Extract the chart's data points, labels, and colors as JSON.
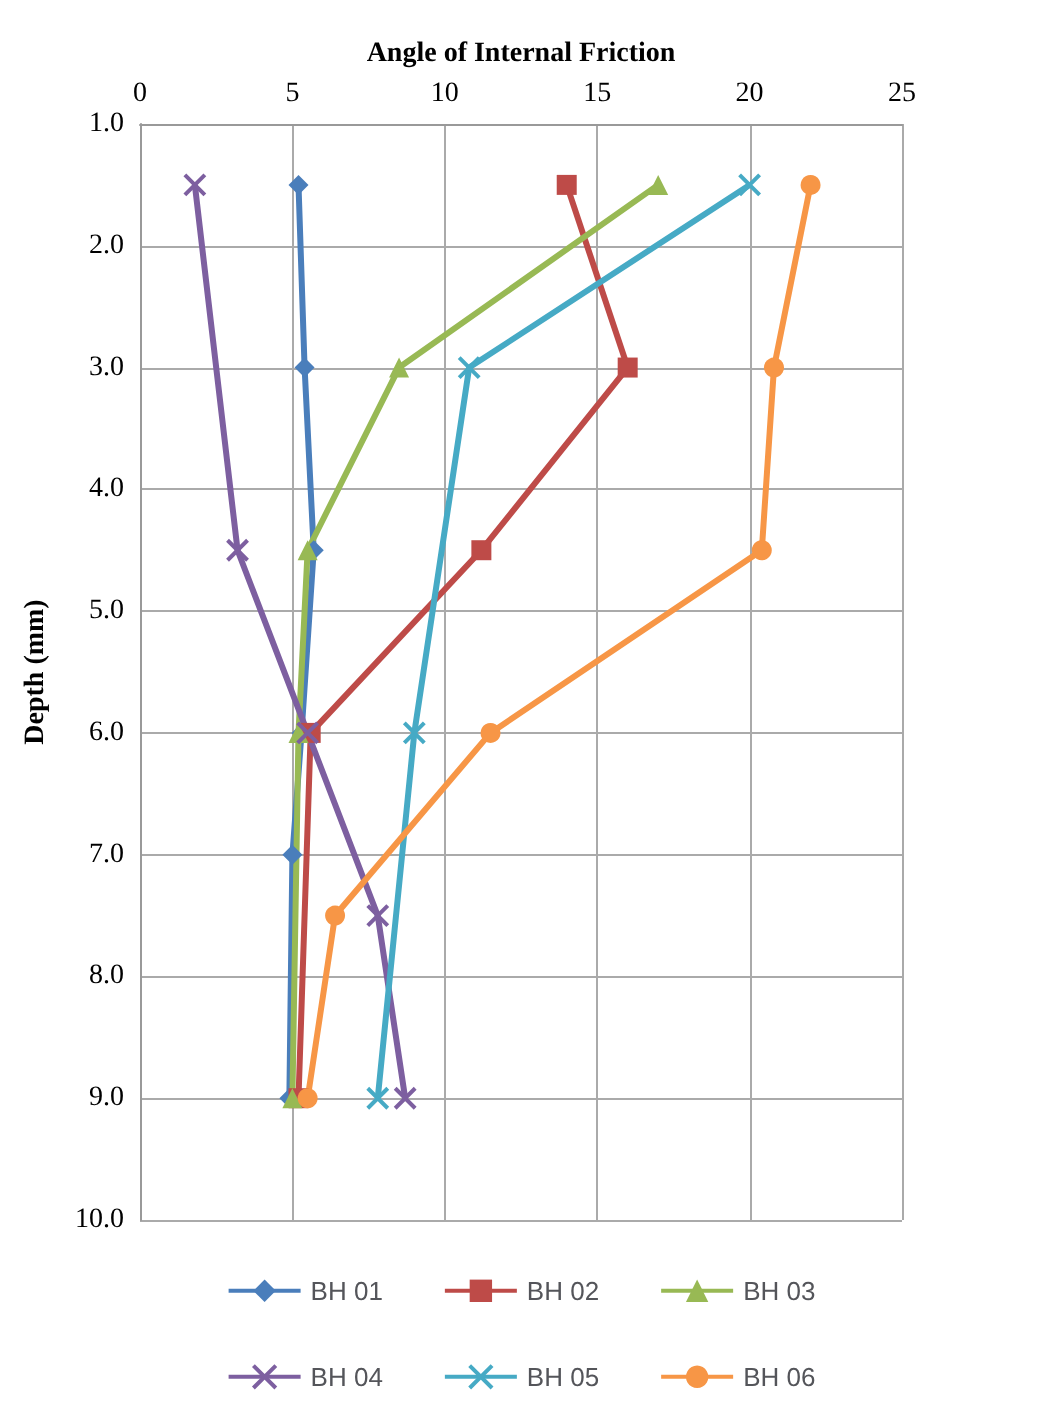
{
  "chart_data": {
    "type": "line",
    "xlabel": "Angle of Internal Friction",
    "ylabel": "Depth (mm)",
    "xlim": [
      0,
      25
    ],
    "xticks": [
      0,
      5,
      10,
      15,
      20,
      25
    ],
    "ylim": [
      10,
      1
    ],
    "yticks": [
      {
        "value": 1,
        "label": "1.0"
      },
      {
        "value": 2,
        "label": "2.0"
      },
      {
        "value": 3,
        "label": "3.0"
      },
      {
        "value": 4,
        "label": "4.0"
      },
      {
        "value": 5,
        "label": "5.0"
      },
      {
        "value": 6,
        "label": "6.0"
      },
      {
        "value": 7,
        "label": "7.0"
      },
      {
        "value": 8,
        "label": "8.0"
      },
      {
        "value": 9,
        "label": "9.0"
      },
      {
        "value": 10,
        "label": "10.0"
      }
    ],
    "grid": true,
    "legend": "bottom",
    "line_style": "solid",
    "series": [
      {
        "name": "BH 01",
        "color": "#4a7ebb",
        "marker": "diamond",
        "x": [
          5.2,
          5.4,
          5.7,
          5.3,
          5.0,
          4.9
        ],
        "values": [
          1.5,
          3.0,
          4.5,
          6.0,
          7.0,
          9.0
        ]
      },
      {
        "name": "BH 02",
        "color": "#be4b48",
        "marker": "square",
        "x": [
          14.0,
          16.0,
          11.2,
          5.6,
          5.2
        ],
        "values": [
          1.5,
          3.0,
          4.5,
          6.0,
          9.0
        ]
      },
      {
        "name": "BH 03",
        "color": "#98b954",
        "marker": "triangle",
        "x": [
          17.0,
          8.5,
          5.5,
          5.2,
          5.0
        ],
        "values": [
          1.5,
          3.0,
          4.5,
          6.0,
          9.0
        ]
      },
      {
        "name": "BH 04",
        "color": "#7d5fa0",
        "marker": "cross",
        "x": [
          1.8,
          3.2,
          5.5,
          7.8,
          8.7
        ],
        "values": [
          1.5,
          4.5,
          6.0,
          7.5,
          9.0
        ]
      },
      {
        "name": "BH 05",
        "color": "#46aac5",
        "marker": "cross",
        "x": [
          20.0,
          10.8,
          9.0,
          7.8
        ],
        "values": [
          1.5,
          3.0,
          6.0,
          9.0
        ]
      },
      {
        "name": "BH 06",
        "color": "#f79646",
        "marker": "circle",
        "x": [
          22.0,
          20.8,
          20.4,
          11.5,
          6.4,
          5.5
        ],
        "values": [
          1.5,
          3.0,
          4.5,
          6.0,
          7.5,
          9.0
        ]
      }
    ]
  }
}
